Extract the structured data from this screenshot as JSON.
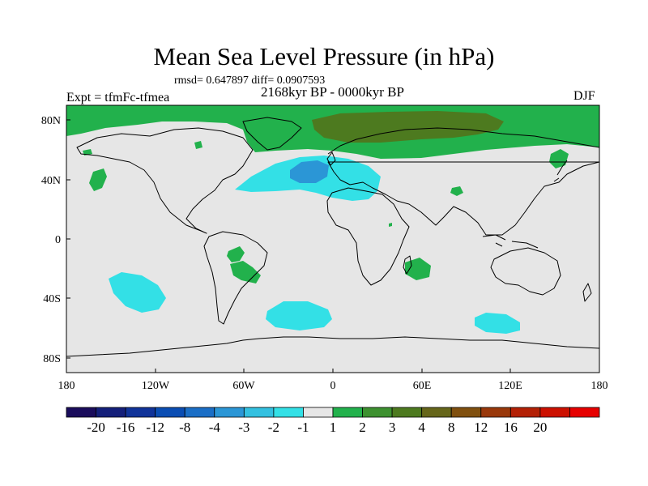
{
  "title": "Mean Sea Level Pressure (in hPa)",
  "stats": "rmsd= 0.647897 diff= 0.0907593",
  "period": "2168kyr BP - 0000kyr BP",
  "experiment": "Expt = tfmFc-tfmea",
  "season": "DJF",
  "map": {
    "lon_ticks": [
      "180",
      "120W",
      "60W",
      "0",
      "60E",
      "120E",
      "180"
    ],
    "lat_ticks": [
      "80N",
      "40N",
      "0",
      "40S",
      "80S"
    ],
    "background_color": "#e6e6e6"
  },
  "colorbar": {
    "colors": [
      "#1a0d5c",
      "#141f7a",
      "#103399",
      "#0a4db3",
      "#1a6ec6",
      "#2b96d6",
      "#33c0e0",
      "#33e0e6",
      "#e6e6e6",
      "#22b14c",
      "#3d9130",
      "#4d7a1f",
      "#66661a",
      "#80500f",
      "#99380a",
      "#b32005",
      "#cc1000",
      "#e60000"
    ],
    "labels": [
      "-20",
      "-16",
      "-12",
      "-8",
      "-4",
      "-3",
      "-2",
      "-1",
      "1",
      "2",
      "3",
      "4",
      "8",
      "12",
      "16",
      "20"
    ]
  },
  "regions": [
    {
      "name": "arctic-positive",
      "level": "2"
    },
    {
      "name": "siberia-positive-strong",
      "level": "3"
    },
    {
      "name": "north-atlantic-negative",
      "level": "-1"
    },
    {
      "name": "north-atlantic-negative-core",
      "level": "-2"
    },
    {
      "name": "south-pacific-negative",
      "level": "-1"
    },
    {
      "name": "south-atlantic-negative",
      "level": "-1"
    },
    {
      "name": "south-indian-negative",
      "level": "-1"
    }
  ]
}
